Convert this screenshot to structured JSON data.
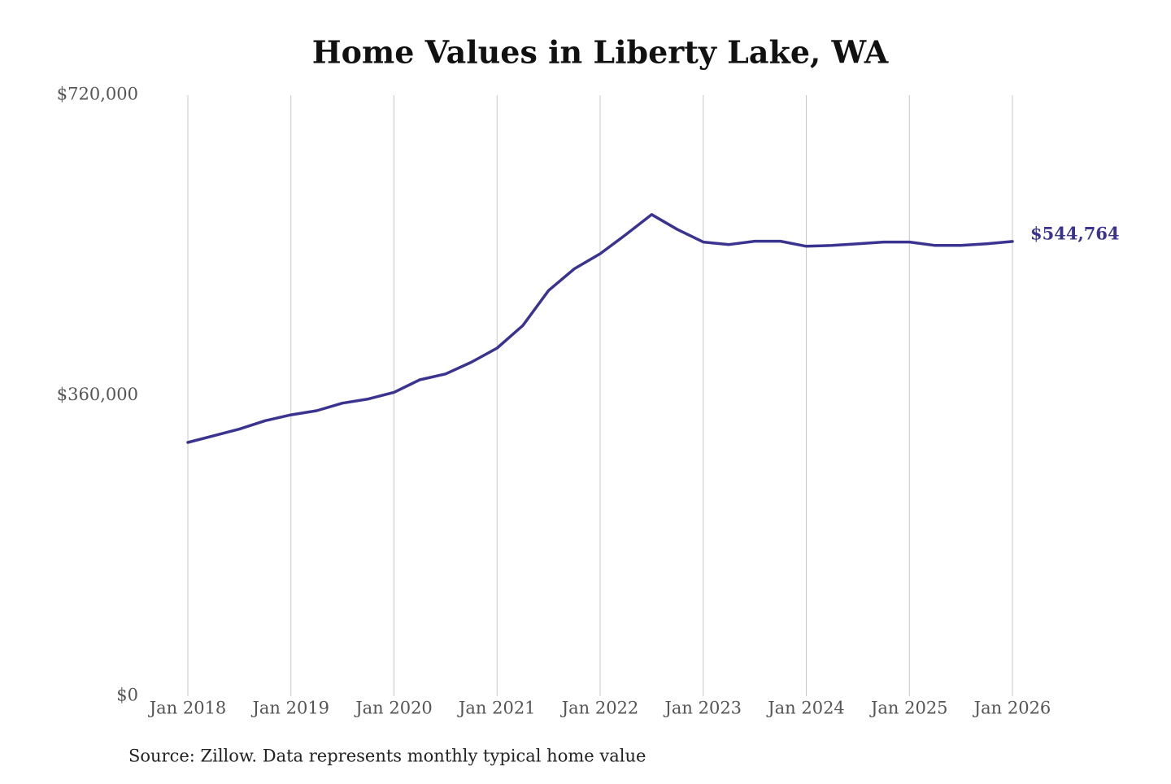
{
  "chart_data": {
    "type": "line",
    "title": "Home Values in Liberty Lake, WA",
    "source": "Source: Zillow. Data represents monthly typical home value",
    "color": "#3a3490",
    "x": [
      "2018-01",
      "2018-04",
      "2018-07",
      "2018-10",
      "2019-01",
      "2019-04",
      "2019-07",
      "2019-10",
      "2020-01",
      "2020-04",
      "2020-07",
      "2020-10",
      "2021-01",
      "2021-04",
      "2021-07",
      "2021-10",
      "2022-01",
      "2022-04",
      "2022-07",
      "2022-10",
      "2023-01",
      "2023-04",
      "2023-07",
      "2023-10",
      "2024-01",
      "2024-04",
      "2024-07",
      "2024-10",
      "2025-01",
      "2025-04",
      "2025-07",
      "2025-10",
      "2026-01"
    ],
    "values": [
      304000,
      312000,
      320000,
      330000,
      337000,
      342000,
      351000,
      356000,
      364000,
      379000,
      386000,
      400000,
      417000,
      444000,
      486000,
      512000,
      530000,
      553000,
      577000,
      559000,
      544000,
      541000,
      545000,
      545000,
      539000,
      540000,
      542000,
      544000,
      544000,
      540000,
      540000,
      542000,
      544764
    ],
    "value_labels": [
      null,
      null,
      null,
      null,
      null,
      null,
      null,
      null,
      null,
      null,
      null,
      null,
      null,
      null,
      null,
      null,
      null,
      null,
      null,
      null,
      null,
      null,
      null,
      null,
      null,
      null,
      null,
      null,
      null,
      null,
      null,
      null,
      "$544,764"
    ],
    "xlim": [
      "2018-01",
      "2026-01"
    ],
    "xticks": [
      {
        "value": "2018-01",
        "label": "Jan 2018"
      },
      {
        "value": "2019-01",
        "label": "Jan 2019"
      },
      {
        "value": "2020-01",
        "label": "Jan 2020"
      },
      {
        "value": "2021-01",
        "label": "Jan 2021"
      },
      {
        "value": "2022-01",
        "label": "Jan 2022"
      },
      {
        "value": "2023-01",
        "label": "Jan 2023"
      },
      {
        "value": "2024-01",
        "label": "Jan 2024"
      },
      {
        "value": "2025-01",
        "label": "Jan 2025"
      },
      {
        "value": "2026-01",
        "label": "Jan 2026"
      }
    ],
    "ylim": [
      0,
      720000
    ],
    "yticks": [
      {
        "value": 0,
        "label": "$0"
      },
      {
        "value": 360000,
        "label": "$360,000"
      },
      {
        "value": 720000,
        "label": "$720,000"
      }
    ],
    "grid": "x"
  }
}
